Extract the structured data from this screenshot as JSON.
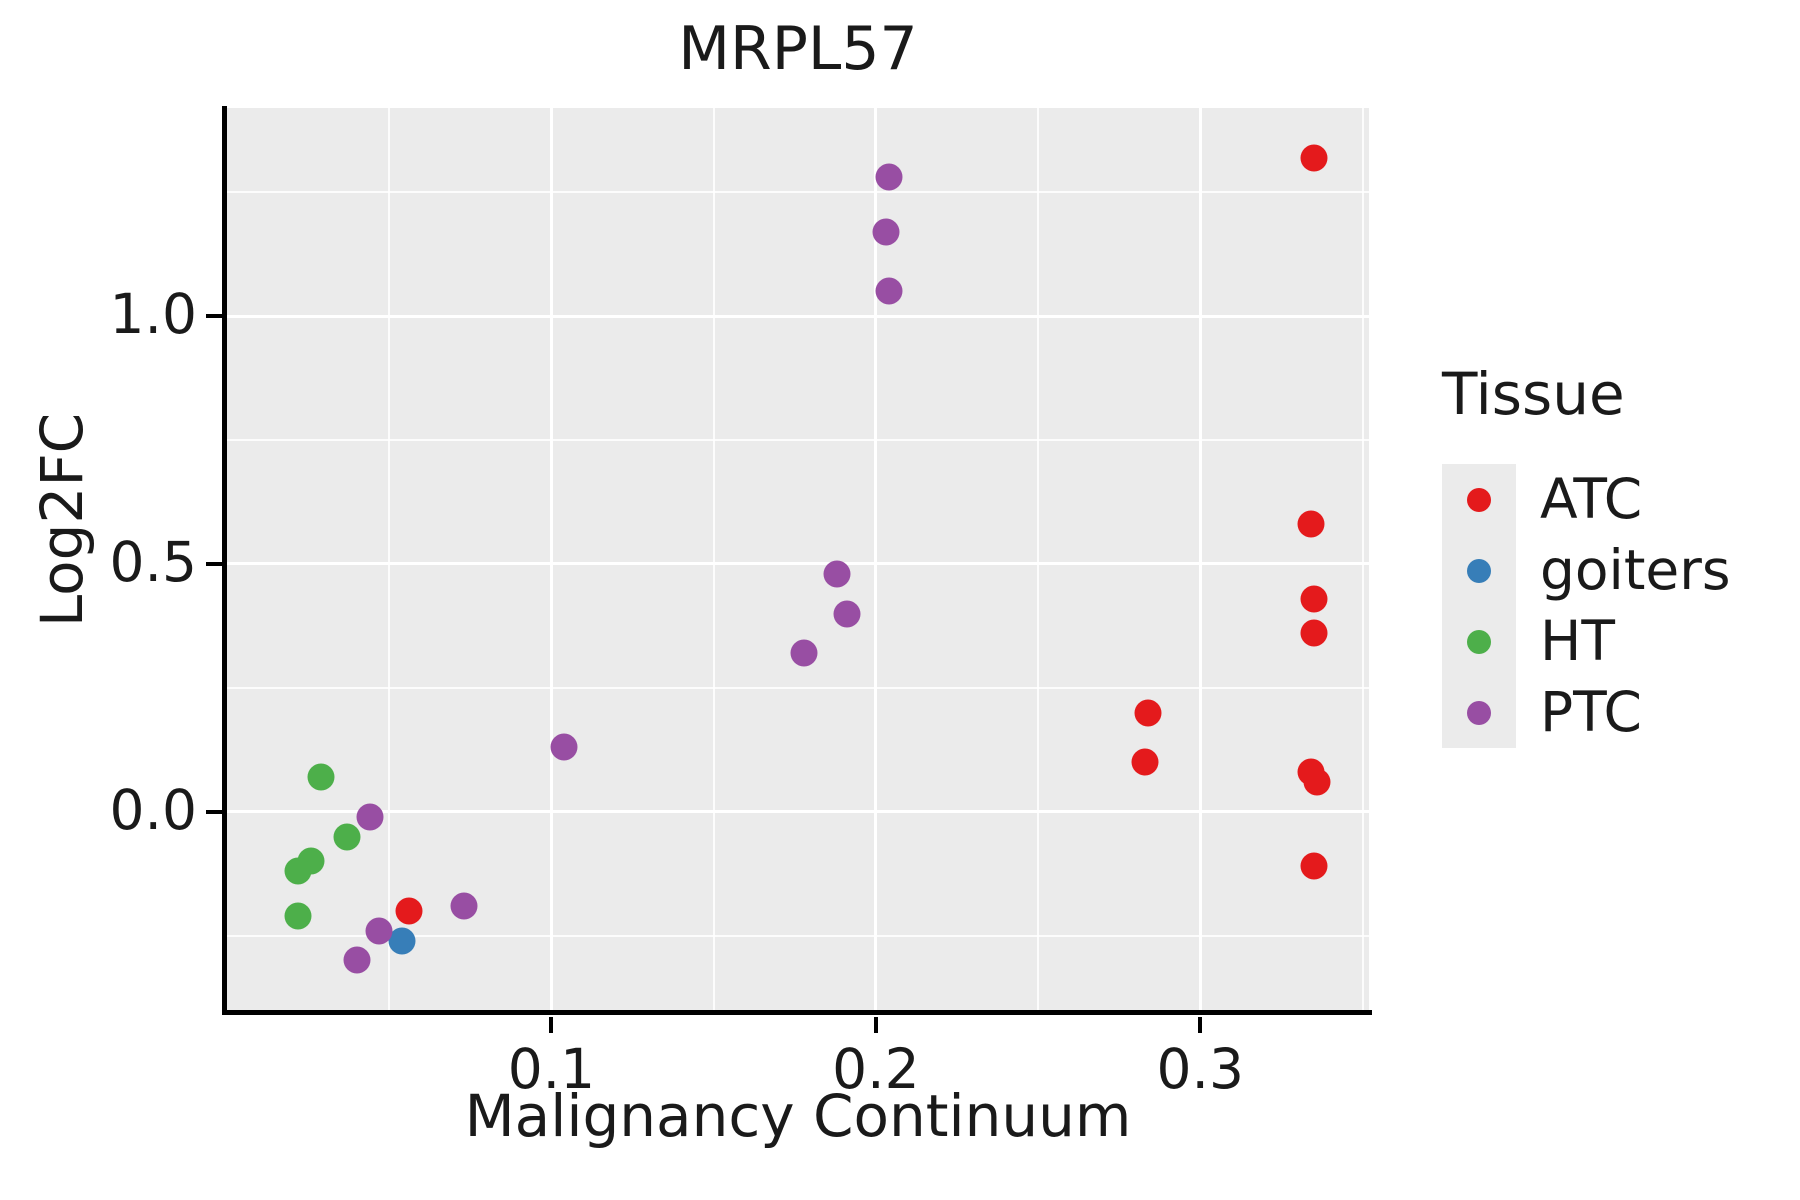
{
  "chart_data": {
    "type": "scatter",
    "title": "MRPL57",
    "xlabel": "Malignancy Continuum",
    "ylabel": "Log2FC",
    "legend_title": "Tissue",
    "xlim": [
      0.0,
      0.352
    ],
    "ylim": [
      -0.4,
      1.42
    ],
    "x_ticks": [
      0.1,
      0.2,
      0.3
    ],
    "x_tick_labels": [
      "0.1",
      "0.2",
      "0.3"
    ],
    "y_ticks": [
      0.0,
      0.5,
      1.0
    ],
    "y_tick_labels": [
      "0.0",
      "0.5",
      "1.0"
    ],
    "x_minor_ticks": [
      0.05,
      0.15,
      0.25,
      0.35
    ],
    "y_minor_ticks": [
      -0.25,
      0.25,
      0.75,
      1.25
    ],
    "grid": true,
    "legend_position": "right",
    "series": [
      {
        "name": "ATC",
        "color": "#e41a1c",
        "points": [
          [
            0.335,
            1.32
          ],
          [
            0.334,
            0.58
          ],
          [
            0.335,
            0.43
          ],
          [
            0.335,
            0.36
          ],
          [
            0.284,
            0.2
          ],
          [
            0.283,
            0.1
          ],
          [
            0.334,
            0.08
          ],
          [
            0.336,
            0.06
          ],
          [
            0.335,
            -0.11
          ],
          [
            0.056,
            -0.2
          ]
        ]
      },
      {
        "name": "goiters",
        "color": "#377eb8",
        "points": [
          [
            0.054,
            -0.26
          ]
        ]
      },
      {
        "name": "HT",
        "color": "#4daf4a",
        "points": [
          [
            0.029,
            0.07
          ],
          [
            0.037,
            -0.05
          ],
          [
            0.026,
            -0.1
          ],
          [
            0.022,
            -0.12
          ],
          [
            0.022,
            -0.21
          ]
        ]
      },
      {
        "name": "PTC",
        "color": "#984ea3",
        "points": [
          [
            0.204,
            1.28
          ],
          [
            0.203,
            1.17
          ],
          [
            0.204,
            1.05
          ],
          [
            0.188,
            0.48
          ],
          [
            0.191,
            0.4
          ],
          [
            0.178,
            0.32
          ],
          [
            0.104,
            0.13
          ],
          [
            0.044,
            -0.01
          ],
          [
            0.073,
            -0.19
          ],
          [
            0.047,
            -0.24
          ],
          [
            0.04,
            -0.3
          ]
        ]
      }
    ]
  },
  "colors": {
    "panel_background": "#ebebeb",
    "grid_line": "#ffffff",
    "axis_line": "#000000",
    "text": "#1a1a1a"
  }
}
